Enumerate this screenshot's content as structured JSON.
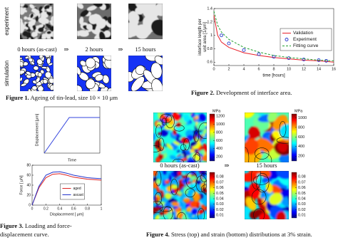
{
  "figure1": {
    "row_labels": [
      "experiment",
      "simulation"
    ],
    "time_labels": [
      "0 hours (as-cast)",
      "2 hours",
      "15 hours"
    ],
    "arrows": [
      "⇒",
      "⇒"
    ],
    "caption": {
      "label": "Figure 1.",
      "text": "Ageing of tin-lead, size 10 × 10 μm"
    }
  },
  "chart_data": [
    {
      "type": "line",
      "ylabel": [
        "interface length per",
        "unit area [1/μm]"
      ],
      "xlabel": "time [hours]",
      "xlim": [
        0,
        16
      ],
      "xticks": [
        0,
        2,
        4,
        6,
        8,
        10,
        12,
        14,
        16
      ],
      "ylim": [
        0.55,
        1.4
      ],
      "yticks": [
        0.6,
        0.8,
        1,
        1.2,
        1.4
      ],
      "legend": "upper right",
      "series": [
        {
          "name": "Validation",
          "color": "#e8202a",
          "style": "solid",
          "x": [
            0,
            0.5,
            1,
            2,
            4,
            6,
            8,
            10,
            12,
            14,
            16
          ],
          "values": [
            1.3,
            1.0,
            0.9,
            0.82,
            0.74,
            0.7,
            0.67,
            0.65,
            0.63,
            0.62,
            0.6
          ]
        },
        {
          "name": "Experiment",
          "color": "#2233cc",
          "style": "markers",
          "x": [
            1,
            2,
            4,
            6,
            8,
            10,
            12,
            14,
            15
          ],
          "values": [
            1.0,
            0.88,
            0.78,
            0.72,
            0.68,
            0.66,
            0.64,
            0.63,
            0.62
          ]
        },
        {
          "name": "Fitting curve",
          "color": "#22a030",
          "style": "dashed",
          "x": [
            0,
            0.5,
            1,
            2,
            4,
            6,
            8,
            10,
            12,
            14,
            16
          ],
          "values": [
            1.36,
            1.15,
            1.05,
            0.94,
            0.82,
            0.75,
            0.7,
            0.67,
            0.65,
            0.63,
            0.62
          ]
        }
      ]
    },
    {
      "type": "line",
      "ylabel": [
        "Displacement [μm]"
      ],
      "xlabel": "Time",
      "xlim": [
        0,
        1
      ],
      "ylim": [
        0,
        1.3
      ],
      "series": [
        {
          "color": "#3344dd",
          "style": "solid",
          "x": [
            0,
            0.45,
            1
          ],
          "values": [
            0,
            1,
            1
          ]
        }
      ]
    },
    {
      "type": "line",
      "ylabel": [
        "Force [ μN]"
      ],
      "xlabel": "Displacement [ μm]",
      "xlim": [
        0,
        1
      ],
      "xticks": [
        0,
        0.2,
        0.4,
        0.6,
        0.8,
        1
      ],
      "ylim": [
        0,
        80
      ],
      "yticks": [
        0,
        20,
        40,
        60,
        80
      ],
      "legend": "center",
      "series": [
        {
          "name": "aged",
          "color": "#dd2222",
          "style": "solid",
          "x": [
            0,
            0.1,
            0.2,
            0.3,
            0.4,
            0.5,
            0.6,
            0.8,
            1
          ],
          "values": [
            0,
            35,
            55,
            62,
            63,
            60,
            56,
            52,
            50
          ]
        },
        {
          "name": "ascast",
          "color": "#2233cc",
          "style": "solid",
          "x": [
            0,
            0.1,
            0.2,
            0.3,
            0.4,
            0.5,
            0.6,
            0.8,
            1
          ],
          "values": [
            0,
            38,
            60,
            66,
            67,
            64,
            60,
            55,
            53
          ]
        }
      ]
    }
  ],
  "figure2": {
    "caption": {
      "label": "Figure 2.",
      "text": "Development of interface area."
    }
  },
  "figure3": {
    "caption": {
      "label": "Figure 3.",
      "text": [
        "Loading and force-",
        "displacement curve."
      ]
    }
  },
  "figure4": {
    "map_labels": [
      "0 hours (as-cast)",
      "15 hours"
    ],
    "arrow": "⇒",
    "colorbars": [
      {
        "unit": "MPa",
        "lim": [
          100,
          1250
        ],
        "ticks": [
          200,
          400,
          600,
          800,
          1000,
          1200
        ]
      },
      {
        "unit": "MPa",
        "lim": [
          100,
          1080
        ],
        "ticks": [
          200,
          400,
          600,
          800,
          1000
        ]
      },
      {
        "lim": [
          0.005,
          0.088
        ],
        "ticks": [
          0.01,
          0.02,
          0.03,
          0.04,
          0.05,
          0.06,
          0.07,
          0.08
        ]
      },
      {
        "lim": [
          0.005,
          0.088
        ],
        "ticks": [
          0.01,
          0.02,
          0.03,
          0.04,
          0.05,
          0.06,
          0.07,
          0.08
        ]
      }
    ],
    "caption": {
      "label": "Figure 4.",
      "text": "Stress (top) and strain (bottom) distributions at 3% strain."
    }
  }
}
